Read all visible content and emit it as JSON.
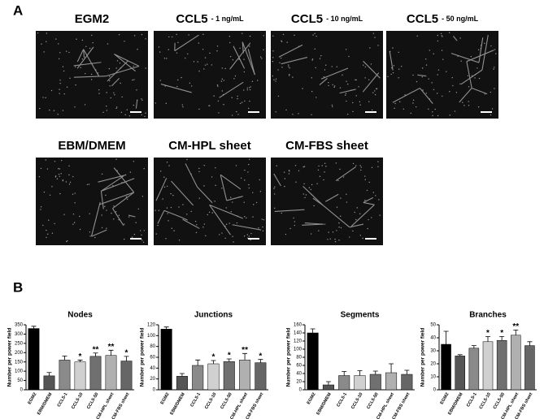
{
  "figure": {
    "panel_a": {
      "label": "A",
      "images": [
        {
          "name": "EGM2"
        },
        {
          "name": "CCL5",
          "detail": "- 1 ng/mL"
        },
        {
          "name": "CCL5",
          "detail": "- 10 ng/mL"
        },
        {
          "name": "CCL5",
          "detail": "- 50 ng/mL"
        },
        {
          "name": "EBM/DMEM"
        },
        {
          "name": "CM-HPL sheet"
        },
        {
          "name": "CM-FBS sheet"
        }
      ]
    },
    "panel_b": {
      "label": "B"
    }
  },
  "chart_data": [
    {
      "type": "bar",
      "title": "Nodes",
      "ylabel": "Number per power field",
      "categories": [
        "EGM2",
        "EBM/DMEM",
        "CCL5-1",
        "CCL5-10",
        "CCL5-50",
        "CM-HPL sheet",
        "CM-FBS sheet"
      ],
      "values": [
        330,
        75,
        160,
        150,
        180,
        185,
        155
      ],
      "errors": [
        12,
        18,
        22,
        10,
        18,
        28,
        25
      ],
      "annotations": [
        null,
        null,
        null,
        "*",
        "**",
        "**",
        "*"
      ],
      "colors": [
        "#000000",
        "#555555",
        "#8a8a8a",
        "#d0d0d0",
        "#707070",
        "#b0b0b0",
        "#666666"
      ],
      "ylim": [
        0,
        350
      ],
      "yticks": [
        0,
        50,
        100,
        150,
        200,
        250,
        300,
        350
      ]
    },
    {
      "type": "bar",
      "title": "Junctions",
      "ylabel": "Number per power field",
      "categories": [
        "EGM2",
        "EBM/DMEM",
        "CCL5-1",
        "CCL5-10",
        "CCL5-50",
        "CM-HPL sheet",
        "CM-FBS sheet"
      ],
      "values": [
        112,
        25,
        45,
        48,
        52,
        55,
        50
      ],
      "errors": [
        4,
        5,
        10,
        6,
        5,
        12,
        6
      ],
      "annotations": [
        null,
        null,
        null,
        "*",
        "*",
        "**",
        "*"
      ],
      "colors": [
        "#000000",
        "#555555",
        "#8a8a8a",
        "#d0d0d0",
        "#707070",
        "#b0b0b0",
        "#666666"
      ],
      "ylim": [
        0,
        120
      ],
      "yticks": [
        0,
        20,
        40,
        60,
        80,
        100,
        120
      ]
    },
    {
      "type": "bar",
      "title": "Segments",
      "ylabel": "Number per power field",
      "categories": [
        "EGM2",
        "EBM/DMEM",
        "CCL5-1",
        "CCL5-10",
        "CCL5-50",
        "CM-HPL sheet",
        "CM-FBS sheet"
      ],
      "values": [
        140,
        12,
        35,
        35,
        38,
        42,
        38
      ],
      "errors": [
        10,
        8,
        10,
        12,
        8,
        22,
        10
      ],
      "annotations": [
        null,
        null,
        null,
        null,
        null,
        null,
        null
      ],
      "colors": [
        "#000000",
        "#555555",
        "#8a8a8a",
        "#d0d0d0",
        "#707070",
        "#b0b0b0",
        "#666666"
      ],
      "ylim": [
        0,
        160
      ],
      "yticks": [
        0,
        20,
        40,
        60,
        80,
        100,
        120,
        140,
        160
      ]
    },
    {
      "type": "bar",
      "title": "Branches",
      "ylabel": "Number per power field",
      "categories": [
        "EGM2",
        "EBM/DMEM",
        "CCL5-1",
        "CCL5-10",
        "CCL5-50",
        "CM-HPL sheet",
        "CM-FBS sheet"
      ],
      "values": [
        35,
        26,
        32,
        37,
        38,
        42,
        34
      ],
      "errors": [
        10,
        1,
        2,
        4,
        3,
        4,
        3
      ],
      "annotations": [
        null,
        null,
        null,
        "*",
        "*",
        "**",
        null
      ],
      "colors": [
        "#000000",
        "#555555",
        "#8a8a8a",
        "#d0d0d0",
        "#707070",
        "#b0b0b0",
        "#666666"
      ],
      "ylim": [
        0,
        50
      ],
      "yticks": [
        0,
        10,
        20,
        30,
        40,
        50
      ]
    }
  ]
}
